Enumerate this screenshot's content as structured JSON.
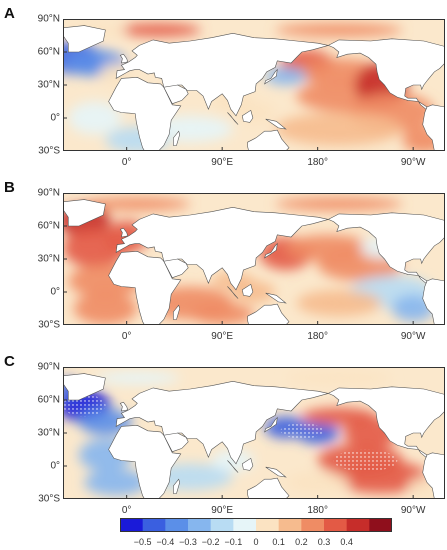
{
  "panels": [
    {
      "letter": "A",
      "pattern": "a"
    },
    {
      "letter": "B",
      "pattern": "b"
    },
    {
      "letter": "C",
      "pattern": "c"
    }
  ],
  "lat_ticks": [
    "90°N",
    "60°N",
    "30°N",
    "0°",
    "30°S"
  ],
  "lon_ticks": [
    "0°",
    "90°E",
    "180°",
    "90°W"
  ],
  "colorbar": {
    "ticks": [
      "−0.5",
      "−0.4",
      "−0.3",
      "−0.2",
      "−0.1",
      "0",
      "0.1",
      "0.2",
      "0.3",
      "0.4"
    ],
    "colors": [
      "#1a1ad9",
      "#3a5fe0",
      "#5b8fe8",
      "#86b6ee",
      "#b8dcf3",
      "#e6f5f8",
      "#fbe3c2",
      "#f6bb8e",
      "#ef8c64",
      "#e35a45",
      "#c62d2a",
      "#8f0f1c"
    ]
  },
  "colors": {
    "land": "#ffffff",
    "coast": "#555555"
  }
}
